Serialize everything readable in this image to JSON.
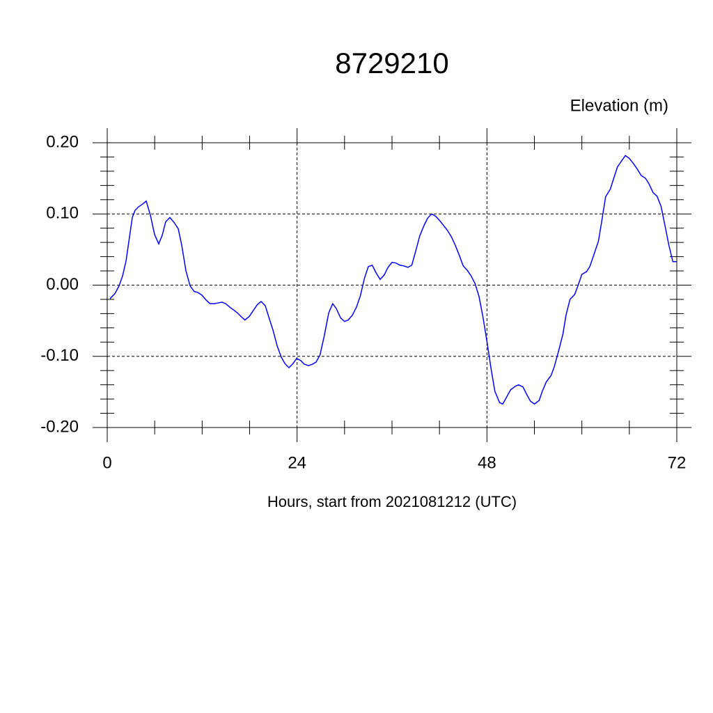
{
  "chart_data": {
    "type": "line",
    "title": "8729210",
    "subtitle": "Elevation (m)",
    "x_label": "Hours, start from 2021081212 (UTC)",
    "xlim": [
      0,
      72
    ],
    "xticks": [
      0,
      24,
      48,
      72
    ],
    "ylim": [
      -0.2,
      0.2
    ],
    "yticks": [
      {
        "value": -0.2,
        "label": "-0.20"
      },
      {
        "value": -0.1,
        "label": "-0.10"
      },
      {
        "value": 0,
        "label": "0.00"
      },
      {
        "value": 0.1,
        "label": "0.10"
      },
      {
        "value": 0.2,
        "label": "0.20"
      }
    ],
    "grid": true,
    "series": [
      {
        "color": "#0000ff",
        "x": [
          0.35,
          0.97,
          1.5,
          1.94,
          2.38,
          2.82,
          3.17,
          3.52,
          3.96,
          4.49,
          4.93,
          5.46,
          5.99,
          6.51,
          6.95,
          7.39,
          7.92,
          8.45,
          8.98,
          9.42,
          9.95,
          10.48,
          11.0,
          11.4,
          11.97,
          12.5,
          13.0,
          13.56,
          14.0,
          14.5,
          14.96,
          15.5,
          16.0,
          16.46,
          17.0,
          17.4,
          17.96,
          18.5,
          19.0,
          19.45,
          19.98,
          20.4,
          20.95,
          21.5,
          22.0,
          22.45,
          22.97,
          23.5,
          23.94,
          24.47,
          24.9,
          25.44,
          25.97,
          26.4,
          26.9,
          27.46,
          28.0,
          28.5,
          28.96,
          29.5,
          30.0,
          30.46,
          31.0,
          31.5,
          32.0,
          32.5,
          33.0,
          33.5,
          34.0,
          34.5,
          35.0,
          35.5,
          36.0,
          36.5,
          37.0,
          37.5,
          38.0,
          38.5,
          39.0,
          39.5,
          40.05,
          40.5,
          41.0,
          41.5,
          42.0,
          42.5,
          43.0,
          43.5,
          44.0,
          44.5,
          45.0,
          45.5,
          46.0,
          46.5,
          47.0,
          47.5,
          48.0,
          48.5,
          49.0,
          49.6,
          50.0,
          50.5,
          51.0,
          51.6,
          52.0,
          52.55,
          53.1,
          53.5,
          54.0,
          54.6,
          55.0,
          55.5,
          56.1,
          56.5,
          57.0,
          57.6,
          58.0,
          58.5,
          59.1,
          59.5,
          60.0,
          60.6,
          61.0,
          61.5,
          62.1,
          62.5,
          63.0,
          63.6,
          64.0,
          64.5,
          65.05,
          65.5,
          66.0,
          66.5,
          67.0,
          67.5,
          68.05,
          68.5,
          69.0,
          69.5,
          70.0,
          70.5,
          71.0,
          71.5,
          72.0
        ],
        "values": [
          -0.019,
          -0.012,
          -0.001,
          0.013,
          0.034,
          0.068,
          0.095,
          0.105,
          0.11,
          0.114,
          0.118,
          0.098,
          0.071,
          0.058,
          0.07,
          0.089,
          0.095,
          0.088,
          0.079,
          0.056,
          0.02,
          -0.001,
          -0.009,
          -0.01,
          -0.014,
          -0.021,
          -0.026,
          -0.026,
          -0.025,
          -0.024,
          -0.026,
          -0.031,
          -0.035,
          -0.039,
          -0.045,
          -0.049,
          -0.044,
          -0.035,
          -0.027,
          -0.023,
          -0.029,
          -0.044,
          -0.063,
          -0.086,
          -0.101,
          -0.11,
          -0.116,
          -0.11,
          -0.103,
          -0.106,
          -0.111,
          -0.113,
          -0.111,
          -0.108,
          -0.098,
          -0.07,
          -0.039,
          -0.026,
          -0.033,
          -0.046,
          -0.051,
          -0.049,
          -0.042,
          -0.031,
          -0.015,
          0.009,
          0.026,
          0.028,
          0.017,
          0.008,
          0.014,
          0.025,
          0.032,
          0.031,
          0.028,
          0.027,
          0.025,
          0.028,
          0.048,
          0.069,
          0.084,
          0.094,
          0.1,
          0.097,
          0.091,
          0.084,
          0.077,
          0.068,
          0.056,
          0.042,
          0.027,
          0.021,
          0.013,
          0.002,
          -0.016,
          -0.045,
          -0.079,
          -0.116,
          -0.149,
          -0.165,
          -0.167,
          -0.157,
          -0.147,
          -0.142,
          -0.14,
          -0.143,
          -0.155,
          -0.163,
          -0.167,
          -0.162,
          -0.149,
          -0.136,
          -0.127,
          -0.115,
          -0.095,
          -0.069,
          -0.042,
          -0.02,
          -0.013,
          -0.001,
          0.015,
          0.019,
          0.026,
          0.042,
          0.062,
          0.089,
          0.124,
          0.135,
          0.149,
          0.166,
          0.175,
          0.182,
          0.178,
          0.171,
          0.163,
          0.154,
          0.15,
          0.142,
          0.13,
          0.125,
          0.111,
          0.084,
          0.056,
          0.033,
          0.033
        ]
      }
    ]
  }
}
